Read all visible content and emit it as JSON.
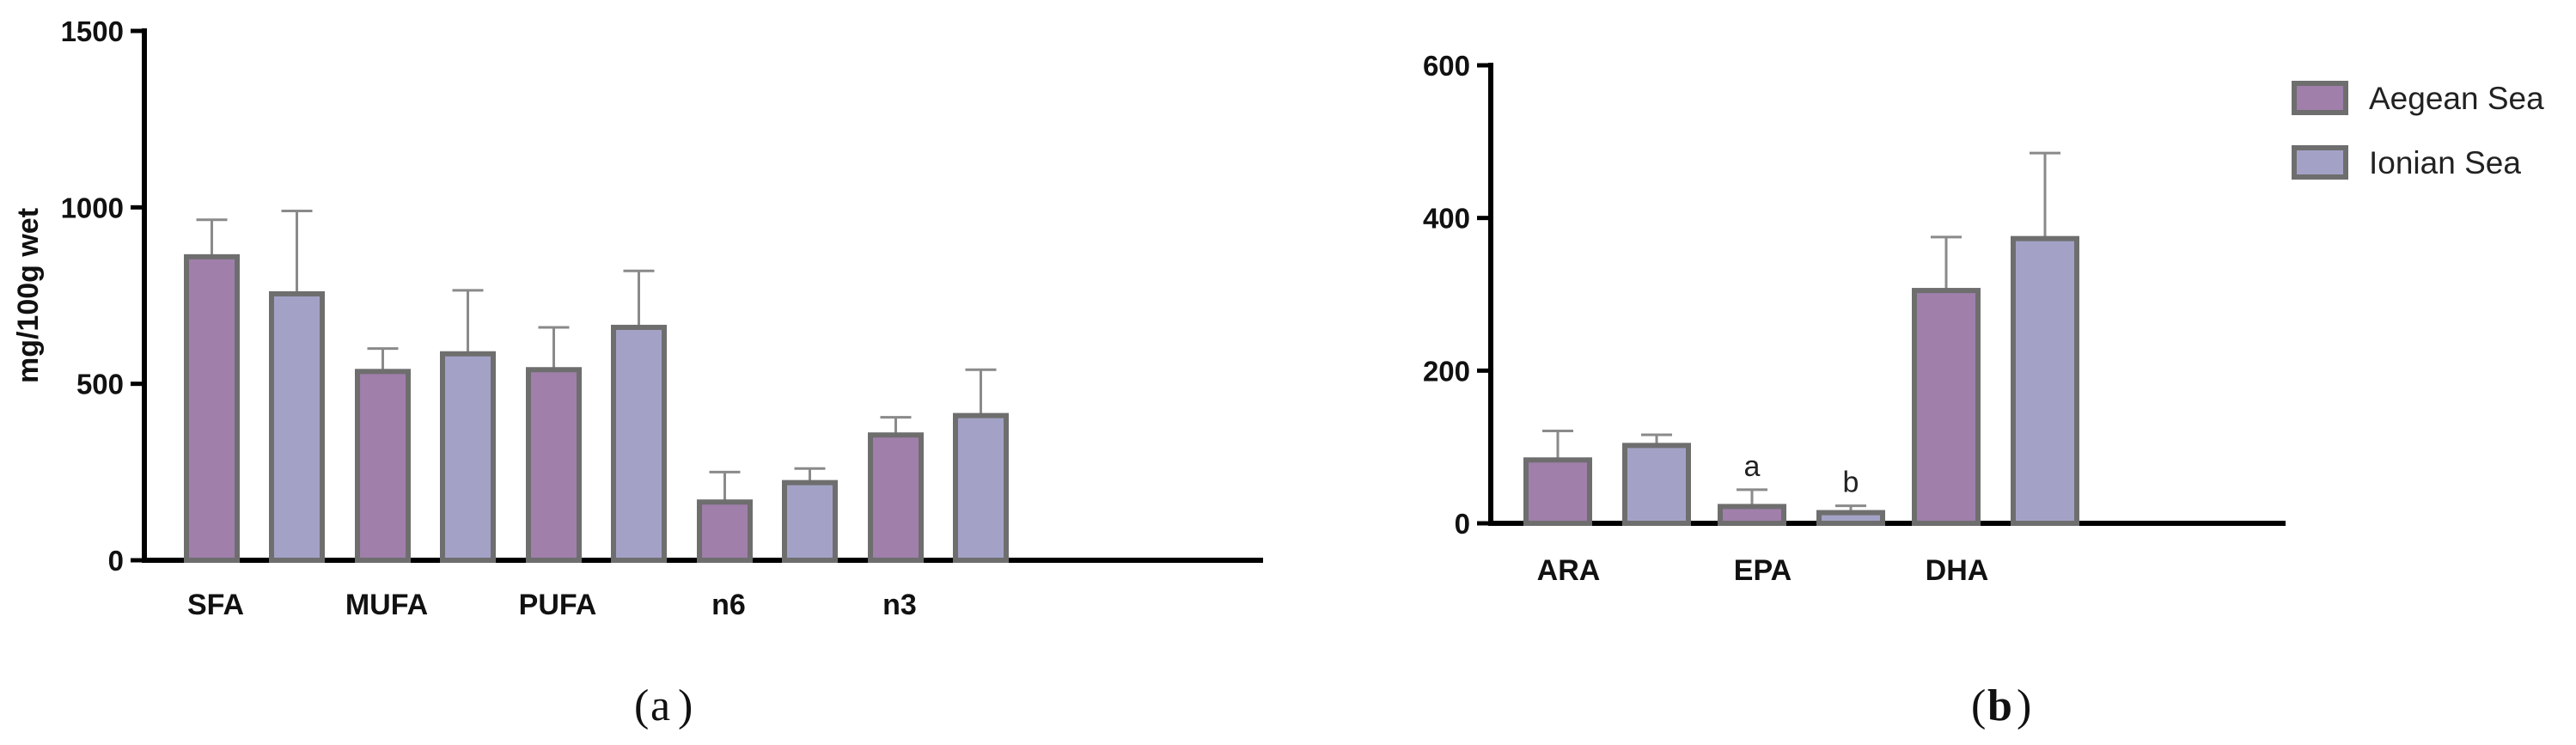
{
  "chart_data": [
    {
      "type": "bar",
      "panel": "a",
      "title": "",
      "xlabel": "",
      "ylabel": "mg/100g wet",
      "ylim": [
        0,
        1500
      ],
      "yticks": [
        0,
        500,
        1000,
        1500
      ],
      "categories": [
        "SFA",
        "MUFA",
        "PUFA",
        "n6",
        "n3"
      ],
      "series": [
        {
          "name": "Aegean Sea",
          "values": [
            860,
            535,
            540,
            165,
            355
          ],
          "errors": [
            105,
            65,
            120,
            85,
            50
          ]
        },
        {
          "name": "Ionian Sea",
          "values": [
            755,
            585,
            660,
            220,
            410
          ],
          "errors": [
            235,
            180,
            160,
            40,
            130
          ]
        }
      ],
      "annotations": [],
      "grid": false
    },
    {
      "type": "bar",
      "panel": "b",
      "title": "",
      "xlabel": "",
      "ylabel": "",
      "ylim": [
        0,
        600
      ],
      "yticks": [
        0,
        200,
        400,
        600
      ],
      "categories": [
        "ARA",
        "EPA",
        "DHA"
      ],
      "series": [
        {
          "name": "Aegean Sea",
          "values": [
            83,
            22,
            305
          ],
          "errors": [
            38,
            22,
            70
          ]
        },
        {
          "name": "Ionian Sea",
          "values": [
            102,
            14,
            373
          ],
          "errors": [
            14,
            9,
            112
          ]
        }
      ],
      "annotations": [
        {
          "text": "a",
          "category": "EPA",
          "series": 0
        },
        {
          "text": "b",
          "category": "EPA",
          "series": 1
        }
      ],
      "grid": false,
      "legend_position": "top-right"
    }
  ],
  "colors": {
    "aegean": "#a07fab",
    "ionian": "#a3a2c6",
    "bar_border": "#6e6e6e",
    "error_bar": "#8a8a8a"
  },
  "legend": {
    "items": [
      {
        "label": "Aegean Sea"
      },
      {
        "label": "Ionian Sea"
      }
    ]
  },
  "panel_labels": {
    "a": "a",
    "b": "b"
  }
}
